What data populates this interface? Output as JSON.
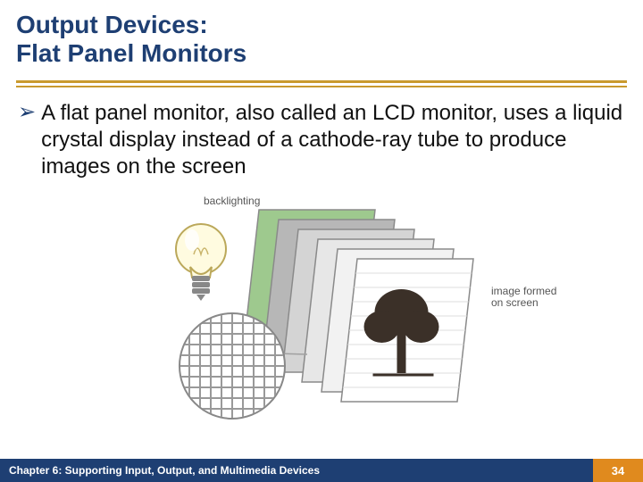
{
  "title": {
    "line1": "Output Devices:",
    "line2": "Flat Panel Monitors",
    "color": "#1e3f73",
    "fontsize": 28
  },
  "rules": {
    "color": "#c99a2e"
  },
  "bullet": {
    "marker": "➢",
    "marker_color": "#1e3f73",
    "text": "A flat panel monitor, also called an LCD monitor, uses a liquid crystal display instead of a cathode-ray tube to produce images on the screen",
    "fontsize": 24
  },
  "figure": {
    "labels": {
      "backlighting": "backlighting",
      "image_formed": "image formed\non screen"
    },
    "panel_colors": [
      "#9ec98e",
      "#b7b7b7",
      "#d4d4d4",
      "#e7e7e7",
      "#f2f2f2",
      "#ffffff"
    ],
    "panel_stroke": "#8a8a8a",
    "bulb": {
      "glass_fill": "#fffbe0",
      "glass_stroke": "#bba85a",
      "base_fill": "#888888"
    },
    "tree": {
      "fill": "#3b3028"
    },
    "pixel_grid": {
      "border": "#888888",
      "cell_border": "#999999"
    },
    "callout_line": "#a0a0a0"
  },
  "footer": {
    "chapter": "Chapter 6: Supporting Input, Output, and Multimedia Devices",
    "page": "34",
    "left_bg": "#1e3f73",
    "right_bg": "#e08a1e"
  }
}
